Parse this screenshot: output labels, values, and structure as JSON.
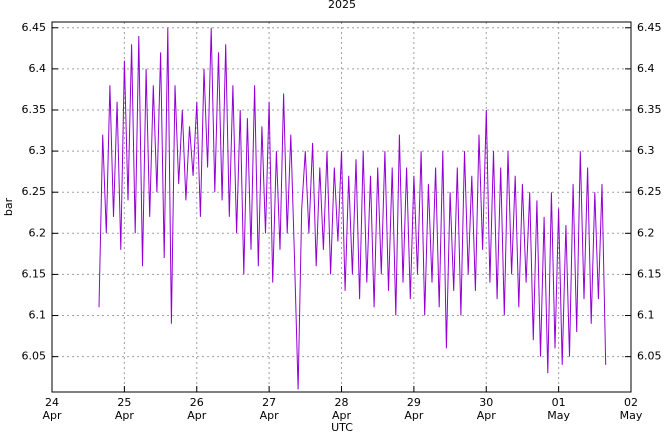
{
  "chart_data": {
    "type": "line",
    "title": "2025",
    "x_label": "UTC",
    "y_label": "bar",
    "x": [
      0.65,
      0.7,
      0.75,
      0.8,
      0.85,
      0.9,
      0.95,
      1.0,
      1.05,
      1.1,
      1.15,
      1.2,
      1.25,
      1.3,
      1.35,
      1.4,
      1.45,
      1.5,
      1.55,
      1.6,
      1.65,
      1.7,
      1.75,
      1.8,
      1.85,
      1.9,
      1.95,
      2.0,
      2.05,
      2.1,
      2.15,
      2.2,
      2.25,
      2.3,
      2.35,
      2.4,
      2.45,
      2.5,
      2.55,
      2.6,
      2.65,
      2.7,
      2.75,
      2.8,
      2.85,
      2.9,
      2.95,
      3.0,
      3.05,
      3.1,
      3.15,
      3.2,
      3.25,
      3.3,
      3.35,
      3.4,
      3.45,
      3.5,
      3.55,
      3.6,
      3.65,
      3.7,
      3.75,
      3.8,
      3.85,
      3.9,
      3.95,
      4.0,
      4.05,
      4.1,
      4.15,
      4.2,
      4.25,
      4.3,
      4.35,
      4.4,
      4.45,
      4.5,
      4.55,
      4.6,
      4.65,
      4.7,
      4.75,
      4.8,
      4.85,
      4.9,
      4.95,
      5.0,
      5.05,
      5.1,
      5.15,
      5.2,
      5.25,
      5.3,
      5.35,
      5.4,
      5.45,
      5.5,
      5.55,
      5.6,
      5.65,
      5.7,
      5.75,
      5.8,
      5.85,
      5.9,
      5.95,
      6.0,
      6.05,
      6.1,
      6.15,
      6.2,
      6.25,
      6.3,
      6.35,
      6.4,
      6.45,
      6.5,
      6.55,
      6.6,
      6.65,
      6.7,
      6.75,
      6.8,
      6.85,
      6.9,
      6.95,
      7.0,
      7.05,
      7.1,
      7.15,
      7.2,
      7.25,
      7.3,
      7.35,
      7.4,
      7.45,
      7.5,
      7.55,
      7.6,
      7.65
    ],
    "series": [
      {
        "name": "bar",
        "color": "#9400d3",
        "values": [
          6.11,
          6.32,
          6.2,
          6.38,
          6.22,
          6.36,
          6.18,
          6.41,
          6.24,
          6.43,
          6.2,
          6.44,
          6.16,
          6.4,
          6.22,
          6.38,
          6.25,
          6.42,
          6.17,
          6.45,
          6.09,
          6.38,
          6.26,
          6.35,
          6.24,
          6.33,
          6.27,
          6.36,
          6.22,
          6.4,
          6.28,
          6.45,
          6.25,
          6.42,
          6.24,
          6.43,
          6.22,
          6.38,
          6.2,
          6.35,
          6.15,
          6.34,
          6.18,
          6.38,
          6.16,
          6.33,
          6.2,
          6.36,
          6.14,
          6.3,
          6.18,
          6.37,
          6.2,
          6.32,
          6.17,
          6.01,
          6.23,
          6.3,
          6.2,
          6.31,
          6.16,
          6.28,
          6.18,
          6.3,
          6.15,
          6.28,
          6.19,
          6.3,
          6.13,
          6.27,
          6.15,
          6.29,
          6.12,
          6.3,
          6.14,
          6.27,
          6.11,
          6.28,
          6.15,
          6.3,
          6.13,
          6.28,
          6.1,
          6.32,
          6.14,
          6.28,
          6.12,
          6.27,
          6.15,
          6.3,
          6.1,
          6.26,
          6.14,
          6.28,
          6.11,
          6.3,
          6.06,
          6.25,
          6.13,
          6.28,
          6.1,
          6.3,
          6.15,
          6.27,
          6.13,
          6.32,
          6.18,
          6.35,
          6.14,
          6.3,
          6.12,
          6.28,
          6.1,
          6.3,
          6.15,
          6.27,
          6.11,
          6.26,
          6.14,
          6.25,
          6.07,
          6.24,
          6.05,
          6.22,
          6.03,
          6.25,
          6.06,
          6.23,
          6.04,
          6.21,
          6.05,
          6.26,
          6.08,
          6.3,
          6.12,
          6.28,
          6.09,
          6.25,
          6.12,
          6.26,
          6.04
        ]
      }
    ],
    "xlim": [
      0,
      8
    ],
    "xticks": [
      {
        "value": 0,
        "label": "24 Apr"
      },
      {
        "value": 1,
        "label": "25 Apr"
      },
      {
        "value": 2,
        "label": "26 Apr"
      },
      {
        "value": 3,
        "label": "27 Apr"
      },
      {
        "value": 4,
        "label": "28 Apr"
      },
      {
        "value": 5,
        "label": "29 Apr"
      },
      {
        "value": 6,
        "label": "30 Apr"
      },
      {
        "value": 7,
        "label": "01 May"
      },
      {
        "value": 8,
        "label": "02 May"
      }
    ],
    "ylim": [
      6.007,
      6.457
    ],
    "yticks": [
      6.05,
      6.1,
      6.15,
      6.2,
      6.25,
      6.3,
      6.35,
      6.4,
      6.45
    ],
    "grid": true
  }
}
